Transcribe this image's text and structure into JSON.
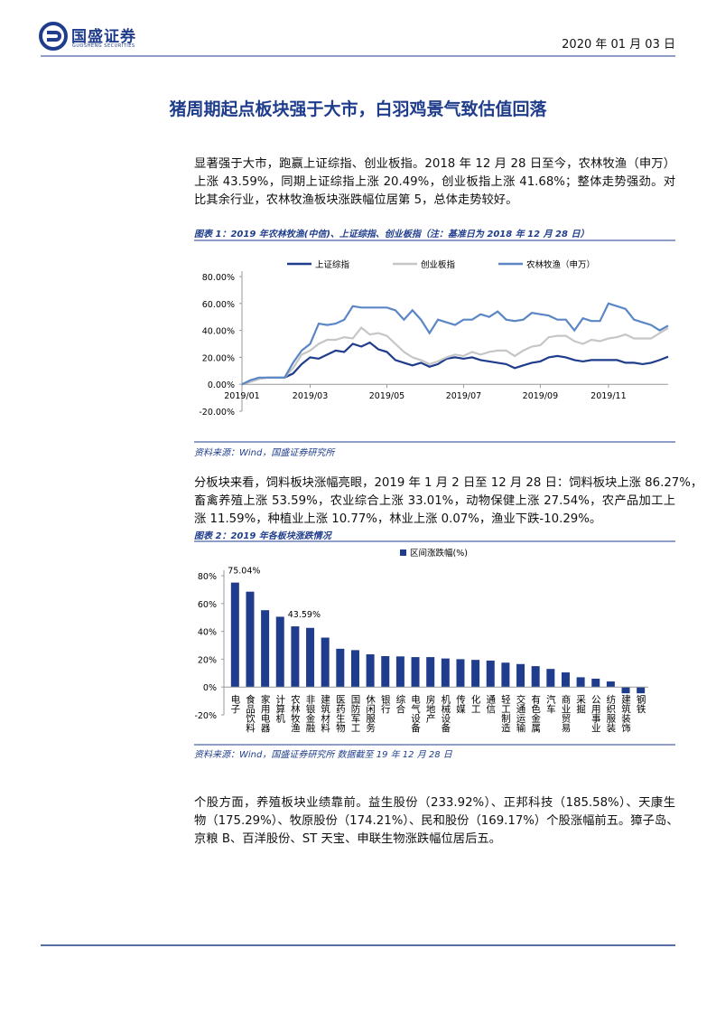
{
  "header": {
    "brand": "国盛证券",
    "brand_en": "GUOSHENG SECURITIES",
    "date": "2020 年 01 月 03 日"
  },
  "heading": "猪周期起点板块强于大市，白羽鸡景气致估值回落",
  "paragraphs": [
    [
      "显著强于大市，跑赢上证综指、创业板指。2018 年 12 月 28 日至今，农林牧渔（申万）",
      "上涨 43.59%，同期上证综指上涨 20.49%，创业板指上涨 41.68%；整体走势强劲。对",
      "比其余行业，农林牧渔板块涨跌幅位居第 5，总体走势较好。"
    ],
    [
      "分板块来看，饲料板块涨幅亮眼，2019 年 1 月 2 日至 12 月 28 日：饲料板块上涨 86.27%，",
      "畜禽养殖上涨 53.59%，农业综合上涨 33.01%，动物保健上涨 27.54%，农产品加工上",
      "涨 11.59%，种植业上涨 10.77%，林业上涨 0.07%，渔业下跌-10.29%。"
    ],
    [
      "个股方面，养殖板块业绩靠前。益生股份（233.92%）、正邦科技（185.58%）、天康生",
      "物（175.29%）、牧原股份（174.21%）、民和股份（169.17%）个股涨幅前五。獐子岛、",
      "京粮 B、百洋股份、ST 天宝、申联生物涨跌幅位居后五。"
    ]
  ],
  "chart_data": [
    {
      "type": "line",
      "title": "图表 1：2019 年农林牧渔(中信)、上证综指、创业板指（注：基准日为 2018 年 12 月 28 日）",
      "source": "资料来源：Wind，国盛证券研究所",
      "categories": [
        "2019/01",
        null,
        null,
        null,
        null,
        null,
        null,
        null,
        "2019/03",
        null,
        null,
        null,
        null,
        null,
        null,
        null,
        null,
        "2019/05",
        null,
        null,
        null,
        null,
        null,
        null,
        null,
        null,
        "2019/07",
        null,
        null,
        null,
        null,
        null,
        null,
        null,
        null,
        "2019/09",
        null,
        null,
        null,
        null,
        null,
        null,
        null,
        "2019/11",
        null,
        null,
        null,
        null,
        null,
        null,
        null
      ],
      "series": [
        {
          "name": "上证综指",
          "color": "#1f3d8c",
          "values": [
            0,
            2,
            4,
            5,
            5,
            5,
            8,
            15,
            20,
            19,
            22,
            25,
            24,
            30,
            28,
            31,
            26,
            24,
            18,
            16,
            14,
            16,
            13,
            15,
            19,
            20,
            19,
            20,
            18,
            17,
            16,
            15,
            12,
            14,
            16,
            17,
            20,
            21,
            20,
            18,
            17,
            18,
            18,
            18,
            18,
            16,
            16,
            15,
            16,
            18,
            20.49
          ]
        },
        {
          "name": "创业板指",
          "color": "#c6c6c6",
          "values": [
            0,
            2,
            4,
            5,
            5,
            5,
            12,
            22,
            25,
            30,
            33,
            33,
            35,
            34,
            42,
            37,
            38,
            36,
            30,
            24,
            20,
            18,
            15,
            17,
            20,
            22,
            21,
            24,
            22,
            24,
            25,
            25,
            21,
            25,
            28,
            29,
            35,
            36,
            36,
            32,
            30,
            33,
            32,
            34,
            35,
            37,
            34,
            34,
            34,
            38,
            41.68
          ]
        },
        {
          "name": "农林牧渔（申万）",
          "color": "#5a86c6",
          "values": [
            0,
            3,
            5,
            5,
            5,
            5,
            16,
            25,
            30,
            45,
            44,
            45,
            48,
            58,
            57,
            57,
            57,
            57,
            55,
            48,
            55,
            48,
            38,
            48,
            46,
            44,
            48,
            48,
            52,
            50,
            54,
            48,
            47,
            48,
            53,
            52,
            51,
            48,
            48,
            40,
            49,
            47,
            47,
            60,
            58,
            56,
            48,
            46,
            44,
            40,
            43.59
          ]
        }
      ],
      "ylim": [
        -20,
        80
      ],
      "yticks": [
        {
          "value": -20,
          "label": "-20.00%"
        },
        {
          "value": 0,
          "label": "0.00%"
        },
        {
          "value": 20,
          "label": "20.00%"
        },
        {
          "value": 40,
          "label": "40.00%"
        },
        {
          "value": 60,
          "label": "60.00%"
        },
        {
          "value": 80,
          "label": "80.00%"
        }
      ],
      "legend": "top"
    },
    {
      "type": "bar",
      "title": "图表 2：2019 年各板块涨跌情况",
      "source": "资料来源：Wind，国盛证券研究所 数据截至 19 年 12 月 28 日",
      "categories": [
        "电子",
        "食品饮料",
        "家用电器",
        "计算机",
        "农林牧渔",
        "非银金融",
        "建筑材料",
        "医药生物",
        "国防军工",
        "休闲服务",
        "银行",
        "综合",
        "电气设备",
        "房地产",
        "机械设备",
        "传媒",
        "化工",
        "通信",
        "轻工制造",
        "交通运输",
        "有色金属",
        "汽车",
        "商业贸易",
        "采掘",
        "公用事业",
        "纺织服装",
        "建筑装饰",
        "钢铁"
      ],
      "series": [
        {
          "name": "区间涨跌幅(%)",
          "color": "#1f3d8c",
          "values": [
            75.04,
            68.5,
            55.2,
            50.5,
            43.59,
            42.5,
            35.5,
            27.5,
            26.5,
            23.5,
            22.2,
            22,
            21.5,
            21.5,
            20.5,
            20,
            19.5,
            19,
            17.5,
            16.5,
            15,
            13,
            10.5,
            7,
            6,
            4,
            -4.5,
            -4.5
          ],
          "value_labels": [
            "75.04%",
            null,
            null,
            null,
            "43.59%",
            null,
            null,
            null,
            null,
            null,
            null,
            null,
            null,
            null,
            null,
            null,
            null,
            null,
            null,
            null,
            null,
            null,
            null,
            null,
            null,
            null,
            null,
            null
          ]
        }
      ],
      "ylim": [
        -20,
        80
      ],
      "yticks": [
        {
          "value": -20,
          "label": "-20%"
        },
        {
          "value": 0,
          "label": "0%"
        },
        {
          "value": 20,
          "label": "20%"
        },
        {
          "value": 40,
          "label": "40%"
        },
        {
          "value": 60,
          "label": "60%"
        },
        {
          "value": 80,
          "label": "80%"
        }
      ],
      "legend": "top"
    }
  ]
}
